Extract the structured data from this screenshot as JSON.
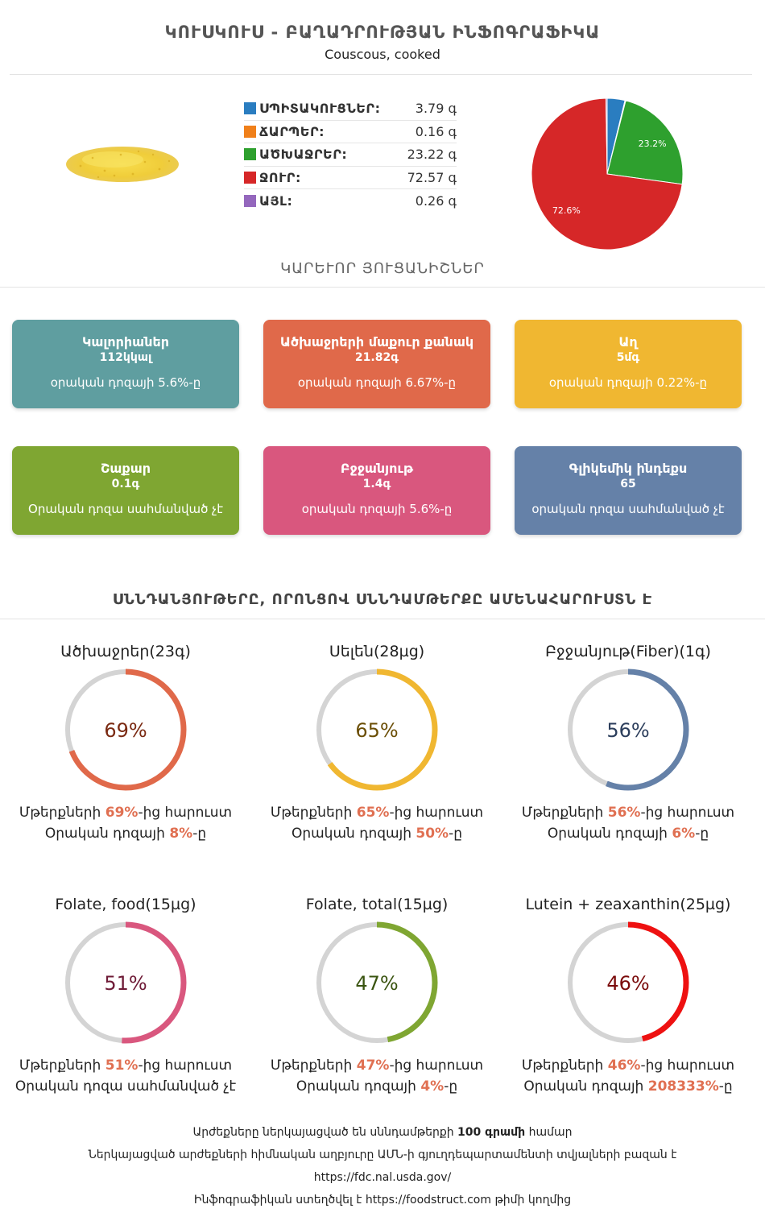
{
  "header": {
    "title": "ԿՈՒՍԿՈՒՍ - ԲԱՂԱԴՐՈՒԹՅԱՆ ԻՆՖՈԳՐԱՖԻԿԱ",
    "subtitle": "Couscous, cooked"
  },
  "composition": [
    {
      "label": "ՍՊԻՏԱԿՈՒՑՆԵՐ:",
      "value": "3.79 գ",
      "color": "#2a7dc0"
    },
    {
      "label": "ՃԱՐՊԵՐ:",
      "value": "0.16 գ",
      "color": "#f0801a"
    },
    {
      "label": "ԱԾԽԱՋՐԵՐ:",
      "value": "23.22 գ",
      "color": "#2ea02e"
    },
    {
      "label": "ՋՈՒՐ:",
      "value": "72.57 գ",
      "color": "#d62728"
    },
    {
      "label": "ԱՅԼ:",
      "value": "0.26 գ",
      "color": "#9467bd"
    }
  ],
  "chart_data": {
    "type": "pie",
    "categories": [
      "ՍՊԻՏԱԿՈՒՑՆԵՐ",
      "ՃԱՐՊԵՐ",
      "ԱԾԽԱՋՐԵՐ",
      "ՋՈՒՐ",
      "ԱՅԼ"
    ],
    "values": [
      3.79,
      0.16,
      23.22,
      72.57,
      0.26
    ],
    "colors": [
      "#2a7dc0",
      "#f0801a",
      "#2ea02e",
      "#d62728",
      "#9467bd"
    ],
    "data_labels": {
      "ԱԾԽԱՋՐԵՐ": "23.2%",
      "ՋՈՒՐ": "72.6%"
    }
  },
  "key_features_title": "ԿԱՐԵՒՈՐ ՅՈՒՑԱՆԻՇՆԵՐ",
  "cards": [
    {
      "title": "Կալորիաներ",
      "value": "112կկալ",
      "note": "օրական դոզայի 5.6%-ը",
      "color": "#5f9ea0"
    },
    {
      "title": "Ածխաջրերի մաքուր քանակ",
      "value": "21.82գ",
      "note": "օրական դոզայի 6.67%-ը",
      "color": "#e0694a"
    },
    {
      "title": "Աղ",
      "value": "5մգ",
      "note": "օրական դոզայի 0.22%-ը",
      "color": "#f0b731"
    },
    {
      "title": "Շաքար",
      "value": "0.1գ",
      "note": "Օրական դոզա սահմանված չէ",
      "color": "#7fa632"
    },
    {
      "title": "Բջջանյութ",
      "value": "1.4գ",
      "note": "օրական դոզայի 5.6%-ը",
      "color": "#d9577e"
    },
    {
      "title": "Գլիկեմիկ ինդեքս",
      "value": "65",
      "note": "օրական դոզա սահմանված չէ",
      "color": "#6581a8"
    }
  ],
  "nutrients_title": "ՍՆՆԴԱՆՅՈՒԹԵՐԸ, ՈՐՈՆՑՈՎ ՍՆՆԴԱՄԹԵՐՔԸ ԱՄԵՆԱՀԱՐՈՒՍՏՆ Է",
  "nutrients": [
    {
      "name": "Ածխաջրեր(23գ)",
      "pct": 69,
      "pct_label": "69%",
      "line1_pre": "Մթերքների ",
      "line1_val": "69%",
      "line1_post": "-ից հարուստ",
      "line2_pre": "Օրական դոզայի ",
      "line2_val": "8%",
      "line2_post": "-ը",
      "color": "#e0694a",
      "text_color": "#7a2a12"
    },
    {
      "name": "Սելեն(28µg)",
      "pct": 65,
      "pct_label": "65%",
      "line1_pre": "Մթերքների ",
      "line1_val": "65%",
      "line1_post": "-ից հարուստ",
      "line2_pre": "Օրական դոզայի ",
      "line2_val": "50%",
      "line2_post": "-ը",
      "color": "#f0b731",
      "text_color": "#6b4e06"
    },
    {
      "name": "Բջջանյութ(Fiber)(1գ)",
      "pct": 56,
      "pct_label": "56%",
      "line1_pre": "Մթերքների ",
      "line1_val": "56%",
      "line1_post": "-ից հարուստ",
      "line2_pre": "Օրական դոզայի ",
      "line2_val": "6%",
      "line2_post": "-ը",
      "color": "#6581a8",
      "text_color": "#2c3e5c"
    },
    {
      "name": "Folate, food(15µg)",
      "pct": 51,
      "pct_label": "51%",
      "line1_pre": "Մթերքների ",
      "line1_val": "51%",
      "line1_post": "-ից հարուստ",
      "line2_pre": "Օրական դոզա սահմանված չէ",
      "line2_val": "",
      "line2_post": "",
      "color": "#d9577e",
      "text_color": "#6e1a36"
    },
    {
      "name": "Folate, total(15µg)",
      "pct": 47,
      "pct_label": "47%",
      "line1_pre": "Մթերքների ",
      "line1_val": "47%",
      "line1_post": "-ից հարուստ",
      "line2_pre": "Օրական դոզայի ",
      "line2_val": "4%",
      "line2_post": "-ը",
      "color": "#7fa632",
      "text_color": "#3a5410"
    },
    {
      "name": "Lutein + zeaxanthin(25µg)",
      "pct": 46,
      "pct_label": "46%",
      "line1_pre": "Մթերքների ",
      "line1_val": "46%",
      "line1_post": "-ից հարուստ",
      "line2_pre": "Օրական դոզայի ",
      "line2_val": "208333%",
      "line2_post": "-ը",
      "color": "#ee1111",
      "text_color": "#7a0a0a"
    }
  ],
  "footer": {
    "line1_pre": "Արժեքները ներկայացված են սննդամթերքի ",
    "line1_bold": "100 գրամի",
    "line1_post": " համար",
    "line2": "Ներկայացված արժեքների հիմնական աղբյուրը ԱՄՆ-ի գյուղդեպարտամենտի տվյալների բազան է",
    "line3": "https://fdc.nal.usda.gov/",
    "line4_pre": "Ինֆոգրաֆիկան ստեղծվել է ",
    "line4_link": "https://foodstruct.com",
    "line4_post": " թիմի կողմից"
  }
}
